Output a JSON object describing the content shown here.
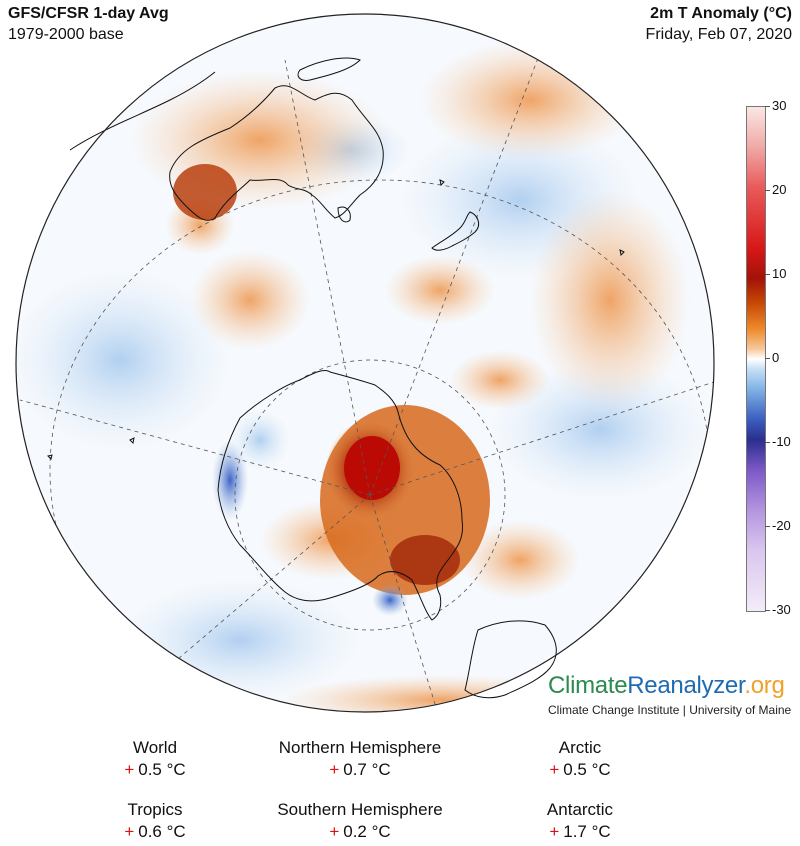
{
  "header": {
    "title_left": "GFS/CFSR 1-day Avg",
    "subtitle_left": "1979-2000 base",
    "title_right": "2m T Anomaly (°C)",
    "subtitle_right": "Friday, Feb 07, 2020"
  },
  "colorbar": {
    "ticks": [
      "30",
      "20",
      "10",
      "0",
      "-10",
      "-20",
      "-30"
    ],
    "range": [
      -30,
      30
    ],
    "colors": {
      "warm_max": "#a21208",
      "neutral": "#ffffff",
      "cold": "#2a2f8e",
      "very_cold": "#b494e0"
    }
  },
  "branding": {
    "climate": "Climate",
    "reanalyzer": "Reanalyzer",
    "org": ".org",
    "institution": "Climate Change Institute | University of Maine"
  },
  "stats": [
    {
      "label": "World",
      "sign": "+",
      "value": "0.5 °C"
    },
    {
      "label": "Northern Hemisphere",
      "sign": "+",
      "value": "0.7 °C"
    },
    {
      "label": "Arctic",
      "sign": "+",
      "value": "0.5 °C"
    },
    {
      "label": "Tropics",
      "sign": "+",
      "value": "0.6 °C"
    },
    {
      "label": "Southern Hemisphere",
      "sign": "+",
      "value": "0.2 °C"
    },
    {
      "label": "Antarctic",
      "sign": "+",
      "value": "1.7 °C"
    }
  ]
}
